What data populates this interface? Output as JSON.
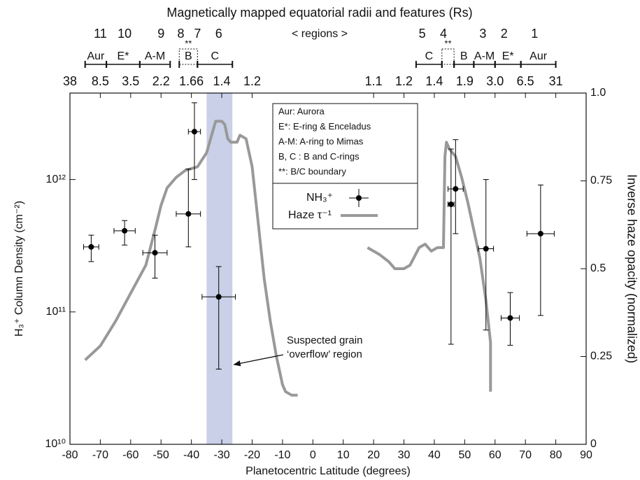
{
  "chart_data": {
    "type": "scatter",
    "title": "Magnetically mapped equatorial radii and features (Rs)",
    "xlabel": "Planetocentric Latitude (degrees)",
    "ylabel": "H₃⁺ Column Density (cm⁻²)",
    "y2label": "Inverse haze opacity (normalized)",
    "xlim": [
      -80,
      90
    ],
    "xticks": [
      -80,
      -70,
      -60,
      -50,
      -40,
      -30,
      -20,
      -10,
      0,
      10,
      20,
      30,
      40,
      50,
      60,
      70,
      80,
      90
    ],
    "ylim": [
      10000000000.0,
      4500000000000.0
    ],
    "yscale": "log",
    "yticks": [
      {
        "value": 10000000000.0,
        "label": "10¹⁰"
      },
      {
        "value": 100000000000.0,
        "label": "10¹¹"
      },
      {
        "value": 1000000000000.0,
        "label": "10¹²"
      }
    ],
    "y2lim": [
      0,
      1
    ],
    "y2ticks": [
      0,
      0.25,
      0.5,
      0.75,
      {
        "value": 1,
        "label": "1.0"
      }
    ],
    "x2ticks": [
      {
        "value": -80,
        "label": "38"
      },
      {
        "value": -70,
        "label": "8.5"
      },
      {
        "value": -60,
        "label": "3.5"
      },
      {
        "value": -50,
        "label": "2.2"
      },
      {
        "value": -40,
        "label": "1.66"
      },
      {
        "value": -30,
        "label": "1.4"
      },
      {
        "value": -20,
        "label": "1.2"
      },
      {
        "value": 20,
        "label": "1.1"
      },
      {
        "value": 30,
        "label": "1.2"
      },
      {
        "value": 40,
        "label": "1.4"
      },
      {
        "value": 50,
        "label": "1.9"
      },
      {
        "value": 60,
        "label": "3.0"
      },
      {
        "value": 70,
        "label": "6.5"
      },
      {
        "value": 80,
        "label": "31"
      }
    ],
    "region_numbers": {
      "labels": [
        "11",
        "10",
        "9",
        "8",
        "7",
        "6",
        "5",
        "4",
        "3",
        "2",
        "1"
      ],
      "x": [
        -70,
        -62,
        -50,
        -43.5,
        -38,
        -31,
        36,
        43,
        56,
        63,
        73
      ]
    },
    "regions_label": "< regions >",
    "regions": [
      {
        "label": "Aur",
        "start": -75,
        "end": -68,
        "style": "solid"
      },
      {
        "label": "E*",
        "start": -68,
        "end": -57,
        "style": "solid"
      },
      {
        "label": "A-M",
        "start": -57,
        "end": -47,
        "style": "solid"
      },
      {
        "label": "B",
        "start": -44,
        "end": -38,
        "style": "dotted",
        "note": "**"
      },
      {
        "label": "C",
        "start": -38,
        "end": -26.5,
        "style": "solid"
      },
      {
        "label": "C",
        "start": 34,
        "end": 42.5,
        "style": "solid"
      },
      {
        "start": 42.5,
        "end": 46.5,
        "style": "dotted",
        "note": "**"
      },
      {
        "label": "B",
        "start": 46.5,
        "end": 53,
        "style": "solid"
      },
      {
        "label": "A-M",
        "start": 53,
        "end": 60,
        "style": "solid"
      },
      {
        "label": "E*",
        "start": 60,
        "end": 68.5,
        "style": "solid"
      },
      {
        "label": "Aur",
        "start": 68.5,
        "end": 80,
        "style": "solid"
      }
    ],
    "highlight": {
      "start": -35,
      "end": -26.5,
      "color": "#c9d0e8"
    },
    "legend_notes": [
      "Aur:  Aurora",
      "E*: E-ring & Enceladus",
      "A-M: A-ring to Mimas",
      "B, C : B and C-rings",
      "**: B/C boundary"
    ],
    "series": [
      {
        "name": "NH₃⁺",
        "kind": "points",
        "color": "#000000",
        "x": [
          -73,
          -62,
          -52,
          -39,
          -41,
          -31,
          45.5,
          47,
          57,
          65,
          75
        ],
        "values": [
          310000000000.0,
          410000000000.0,
          280000000000.0,
          2300000000000.0,
          550000000000.0,
          130000000000.0,
          650000000000.0,
          850000000000.0,
          300000000000.0,
          90000000000.0,
          390000000000.0
        ],
        "xerr": [
          2.5,
          3.5,
          4,
          2,
          4,
          5.5,
          1,
          2.5,
          2.5,
          3,
          4.5
        ],
        "y_low": [
          240000000000.0,
          320000000000.0,
          180000000000.0,
          1000000000000.0,
          310000000000.0,
          37000000000.0,
          57000000000.0,
          390000000000.0,
          73000000000.0,
          56000000000.0,
          94000000000.0
        ],
        "y_high": [
          380000000000.0,
          490000000000.0,
          380000000000.0,
          3800000000000.0,
          1200000000000.0,
          220000000000.0,
          1700000000000.0,
          2000000000000.0,
          1000000000000.0,
          140000000000.0,
          910000000000.0
        ]
      },
      {
        "name": "Haze τ⁻¹",
        "kind": "line",
        "axis": "y2",
        "color": "#999999",
        "x": [
          -75,
          -70,
          -65,
          -60,
          -55,
          -52,
          -50,
          -48,
          -45,
          -42,
          -38,
          -35,
          -33,
          -32,
          -30,
          -29,
          -28,
          -27,
          -25,
          -24,
          -22,
          -20,
          -18,
          -16,
          -14,
          -12,
          -10,
          -9,
          -7,
          -5,
          6,
          18,
          20,
          22,
          25,
          27,
          30,
          32,
          35,
          37,
          39,
          41,
          42,
          43,
          43.5,
          44,
          45,
          47,
          49,
          51,
          53,
          55,
          57,
          58.5,
          58.5
        ],
        "values": [
          0.24,
          0.28,
          0.35,
          0.43,
          0.51,
          0.61,
          0.68,
          0.73,
          0.76,
          0.78,
          0.79,
          0.83,
          0.89,
          0.92,
          0.92,
          0.91,
          0.87,
          0.86,
          0.86,
          0.88,
          0.87,
          0.79,
          0.63,
          0.47,
          0.35,
          0.25,
          0.17,
          0.15,
          0.14,
          0.14,
          null,
          0.56,
          0.55,
          0.54,
          0.52,
          0.5,
          0.5,
          0.51,
          0.56,
          0.57,
          0.55,
          0.56,
          0.56,
          0.56,
          0.82,
          0.86,
          0.84,
          0.82,
          0.76,
          0.69,
          0.61,
          0.53,
          0.41,
          0.29,
          0.15
        ]
      }
    ],
    "annotation": {
      "lines": [
        "Suspected grain",
        "‘overflow’ region"
      ],
      "arrow_to": [
        -26,
        40000000000.0
      ]
    }
  }
}
